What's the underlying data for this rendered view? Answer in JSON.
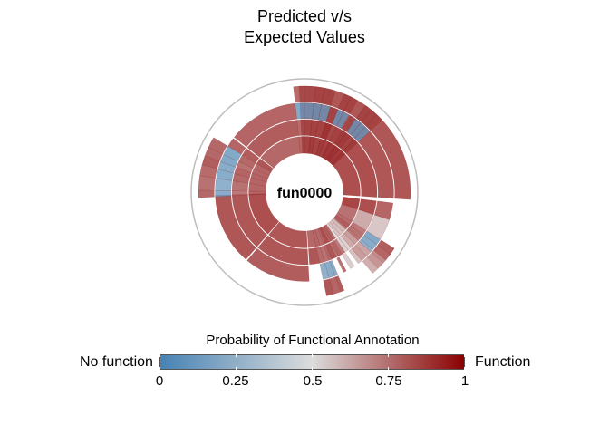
{
  "chart_data": {
    "type": "sunburst",
    "title": "Predicted v/s\nExpected Values",
    "title_lines": [
      "Predicted v/s",
      "Expected Values"
    ],
    "center_label": "fun0000",
    "legend": {
      "title": "Probability of Functional Annotation",
      "low_label": "No function",
      "high_label": "Function",
      "ticks": [
        "0",
        "0.25",
        "0.5",
        "0.75",
        "1"
      ],
      "tick_values": [
        0,
        0.25,
        0.5,
        0.75,
        1
      ],
      "colors": {
        "low": "#4682b4",
        "mid": "#dcdcdc",
        "high": "#8b0000"
      }
    },
    "rings": 4,
    "outer_reference_circle": true,
    "sectors": [
      {
        "start": 357,
        "end": 454,
        "levels": [
          0.92,
          0.92,
          0.9,
          0.9
        ]
      },
      {
        "start": 457,
        "end": 468,
        "levels": [
          0.95,
          0.92,
          0.86
        ]
      },
      {
        "start": 468,
        "end": 482,
        "levels": [
          0.82,
          0.66,
          0.58
        ]
      },
      {
        "start": 482,
        "end": 486,
        "levels": [
          0.84,
          0.8,
          0.1,
          0.88
        ]
      },
      {
        "start": 486,
        "end": 490,
        "levels": [
          0.88,
          0.82,
          0.12,
          0.86
        ]
      },
      {
        "start": 490,
        "end": 492,
        "levels": [
          0.82,
          0.8,
          0.15,
          0.75
        ]
      },
      {
        "start": 492,
        "end": 496,
        "levels": [
          0.62,
          0.7,
          0.68,
          0.72
        ]
      },
      {
        "start": 496,
        "end": 500,
        "levels": [
          0.6,
          0.66,
          0.7,
          0.65
        ]
      },
      {
        "start": 500,
        "end": 503,
        "levels": [
          0.58,
          0.55,
          0.6
        ]
      },
      {
        "start": 503,
        "end": 506,
        "levels": [
          0.52,
          0.55
        ]
      },
      {
        "start": 506,
        "end": 509,
        "levels": [
          0.85,
          0.8,
          0.56
        ]
      },
      {
        "start": 509,
        "end": 512,
        "levels": [
          0.88,
          0.86
        ]
      },
      {
        "start": 512,
        "end": 514,
        "levels": [
          0.86,
          0.82,
          0.82
        ]
      },
      {
        "start": 514,
        "end": 518,
        "levels": [
          0.92,
          0.9
        ]
      },
      {
        "start": 518,
        "end": 520,
        "levels": [
          0.84,
          0.85,
          0.12,
          0.88
        ]
      },
      {
        "start": 520,
        "end": 524,
        "levels": [
          0.84,
          0.82,
          0.12,
          0.86
        ]
      },
      {
        "start": 524,
        "end": 528,
        "levels": [
          0.86,
          0.84,
          0.15,
          0.9
        ]
      },
      {
        "start": 528,
        "end": 536,
        "levels": [
          0.85,
          0.9
        ]
      },
      {
        "start": 537,
        "end": 580,
        "levels": [
          0.9,
          0.9,
          0.88
        ]
      },
      {
        "start": 581,
        "end": 628,
        "levels": [
          0.92,
          0.9,
          0.9
        ]
      },
      {
        "start": 627,
        "end": 631,
        "levels": [
          0.86,
          0.8,
          0.12,
          0.85
        ]
      },
      {
        "start": 631,
        "end": 639,
        "levels": [
          0.86,
          0.82,
          0.15,
          0.82
        ]
      },
      {
        "start": 639,
        "end": 645,
        "levels": [
          0.86,
          0.85,
          0.12,
          0.84
        ]
      },
      {
        "start": 645,
        "end": 650,
        "levels": [
          0.86,
          0.86,
          0.12,
          0.88
        ]
      },
      {
        "start": 650,
        "end": 655,
        "levels": [
          0.86,
          0.82,
          0.1,
          0.85
        ]
      },
      {
        "start": 655,
        "end": 661,
        "levels": [
          0.86,
          0.85,
          0.1,
          0.85
        ]
      },
      {
        "start": 661,
        "end": 667,
        "levels": [
          0.9,
          0.88,
          0.86
        ]
      },
      {
        "start": 668,
        "end": 714,
        "levels": [
          0.85,
          0.88,
          0.86
        ]
      },
      {
        "start": 714,
        "end": 720,
        "levels": [
          0.86,
          0.84,
          0.1,
          0.84
        ]
      },
      {
        "start": 720,
        "end": 726,
        "levels": [
          0.86,
          0.86,
          0.1,
          0.84
        ]
      },
      {
        "start": 726,
        "end": 731,
        "levels": [
          0.88,
          0.86,
          0.1,
          0.86
        ]
      },
      {
        "start": 731,
        "end": 737,
        "levels": [
          0.86,
          0.86,
          0.1,
          0.86
        ]
      },
      {
        "start": 737,
        "end": 742,
        "levels": [
          0.88,
          0.9,
          0.86
        ]
      },
      {
        "start": 742,
        "end": 746,
        "levels": [
          0.86,
          0.84,
          0.1,
          0.86
        ]
      },
      {
        "start": 746,
        "end": 750,
        "levels": [
          0.9,
          0.86,
          0.1,
          0.86
        ]
      },
      {
        "start": 751,
        "end": 755,
        "levels": [
          0.9,
          0.88,
          0.85
        ]
      },
      {
        "start": 755,
        "end": 759,
        "levels": [
          0.9,
          0.88,
          0.1,
          0.86
        ]
      },
      {
        "start": 759,
        "end": 763,
        "levels": [
          0.88,
          0.86,
          0.1,
          0.86
        ]
      },
      {
        "start": 763,
        "end": 767,
        "levels": [
          0.9,
          0.88,
          0.1,
          0.86
        ]
      }
    ]
  }
}
